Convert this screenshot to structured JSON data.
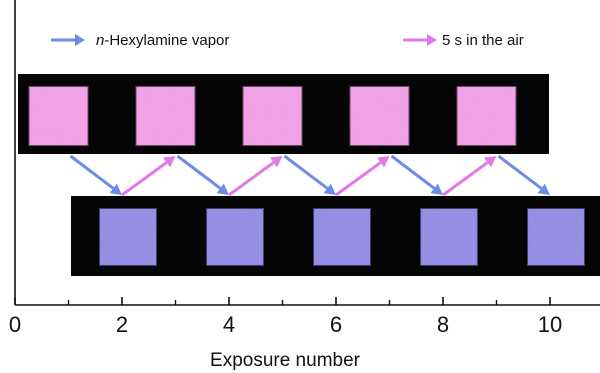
{
  "chart_data": {
    "type": "scatter",
    "xlabel": "Exposure number",
    "xlim": [
      0,
      11
    ],
    "x_ticks": [
      0,
      2,
      4,
      6,
      8,
      10
    ],
    "x_minor_ticks": [
      1,
      3,
      5,
      7,
      9
    ],
    "legend": {
      "placement": "top",
      "entries": [
        {
          "key": "vapor",
          "italic_prefix": "n",
          "rest": "-Hexylamine vapor",
          "color": "#6b8de6"
        },
        {
          "key": "air",
          "text": "5 s in the air",
          "color": "#e27ae6"
        }
      ]
    },
    "series": [
      {
        "name": "n-Hexylamine vapor",
        "state": "exposed",
        "x": [
          2,
          4,
          6,
          8,
          10
        ],
        "level": "low",
        "swatch_color": "#8f86e3"
      },
      {
        "name": "5 s in the air",
        "state": "recovered",
        "x": [
          1,
          3,
          5,
          7,
          9
        ],
        "level": "high",
        "swatch_color": "#ef9ce6"
      }
    ],
    "transitions": [
      {
        "from": 1,
        "to": 2,
        "type": "vapor"
      },
      {
        "from": 2,
        "to": 3,
        "type": "air"
      },
      {
        "from": 3,
        "to": 4,
        "type": "vapor"
      },
      {
        "from": 4,
        "to": 5,
        "type": "air"
      },
      {
        "from": 5,
        "to": 6,
        "type": "vapor"
      },
      {
        "from": 6,
        "to": 7,
        "type": "air"
      },
      {
        "from": 7,
        "to": 8,
        "type": "vapor"
      },
      {
        "from": 8,
        "to": 9,
        "type": "air"
      },
      {
        "from": 9,
        "to": 10,
        "type": "vapor"
      }
    ],
    "colors": {
      "vapor_arrow": "#6b8de6",
      "air_arrow": "#e27ae6",
      "photo_background": "#050505",
      "axis": "#111111"
    }
  }
}
